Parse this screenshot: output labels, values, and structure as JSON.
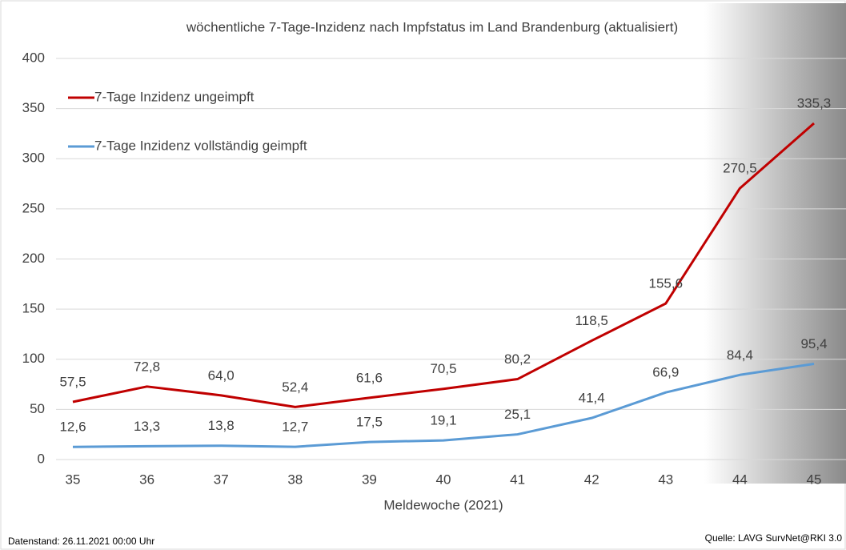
{
  "chart_data": {
    "type": "line",
    "title": "wöchentliche 7-Tage-Inzidenz nach Impfstatus im Land Brandenburg (aktualisiert)",
    "x_label": "Meldewoche (2021)",
    "categories": [
      "35",
      "36",
      "37",
      "38",
      "39",
      "40",
      "41",
      "42",
      "43",
      "44",
      "45"
    ],
    "series": [
      {
        "name": "7-Tage Inzidenz ungeimpft",
        "color": "#c00000",
        "values": [
          57.5,
          72.8,
          64.0,
          52.4,
          61.6,
          70.5,
          80.2,
          118.5,
          155.6,
          270.5,
          335.3
        ],
        "value_labels": [
          "57,5",
          "72,8",
          "64,0",
          "52,4",
          "61,6",
          "70,5",
          "80,2",
          "118,5",
          "155,6",
          "270,5",
          "335,3"
        ]
      },
      {
        "name": "7-Tage Inzidenz vollständig geimpft",
        "color": "#5b9bd5",
        "values": [
          12.6,
          13.3,
          13.8,
          12.7,
          17.5,
          19.1,
          25.1,
          41.4,
          66.9,
          84.4,
          95.4
        ],
        "value_labels": [
          "12,6",
          "13,3",
          "13,8",
          "12,7",
          "17,5",
          "19,1",
          "25,1",
          "41,4",
          "66,9",
          "84,4",
          "95,4"
        ]
      }
    ],
    "ylim": [
      0,
      400
    ],
    "yticks": [
      0,
      50,
      100,
      150,
      200,
      250,
      300,
      350,
      400
    ],
    "grid": true,
    "legend": "upper left",
    "footer_left": "Datenstand: 26.11.2021  00:00 Uhr",
    "footer_right": "Quelle: LAVG SurvNet@RKI 3.0"
  }
}
